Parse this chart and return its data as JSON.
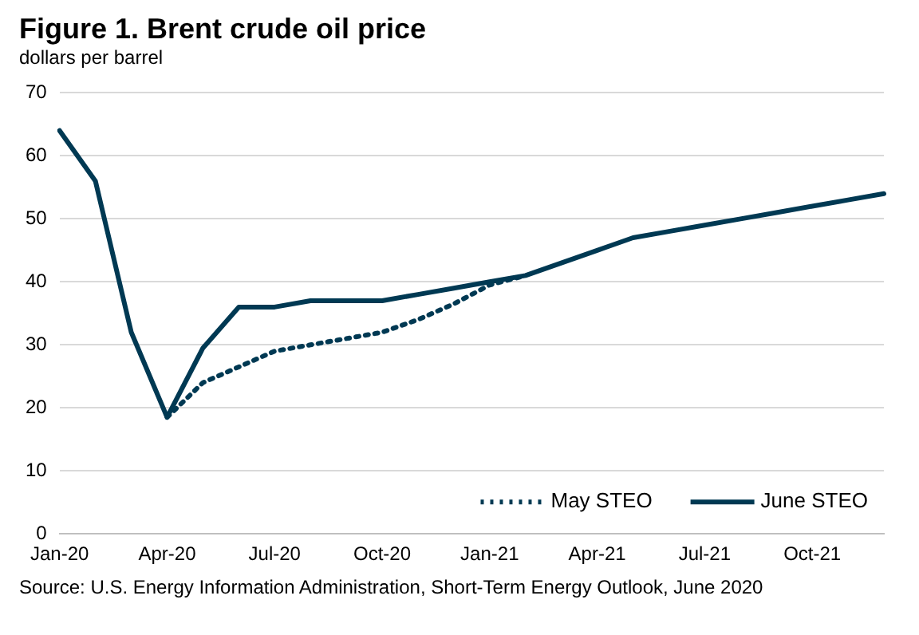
{
  "chart_data": {
    "type": "line",
    "title": "Figure 1. Brent crude oil price",
    "ylabel": "dollars per barrel",
    "categories": [
      "Jan-20",
      null,
      null,
      "Apr-20",
      null,
      null,
      "Jul-20",
      null,
      null,
      "Oct-20",
      null,
      null,
      "Jan-21",
      null,
      null,
      "Apr-21",
      null,
      null,
      "Jul-21",
      null,
      null,
      "Oct-21",
      null,
      null
    ],
    "series": [
      {
        "name": "May STEO",
        "color": "#003953",
        "line_style": "dotted",
        "values": [
          null,
          null,
          null,
          18.5,
          24,
          26.5,
          29,
          30,
          31,
          32,
          34,
          36.5,
          39.5,
          41,
          null,
          null,
          null,
          null,
          null,
          null,
          null,
          null,
          null,
          null
        ]
      },
      {
        "name": "June STEO",
        "color": "#003953",
        "line_style": "solid",
        "values": [
          64,
          56,
          32,
          18.5,
          29.5,
          36,
          36,
          37,
          37,
          37,
          38,
          39,
          40,
          41,
          43,
          45,
          47,
          48,
          49,
          50,
          51,
          52,
          53,
          54
        ]
      }
    ],
    "ylim": [
      0,
      70
    ],
    "yticks": [
      0,
      10,
      20,
      30,
      40,
      50,
      60,
      70
    ],
    "grid": "y",
    "legend": "bottom right",
    "marker": "none",
    "annotations": [
      "Source: U.S. Energy Information Administration, Short-Term Energy Outlook, June 2020"
    ]
  }
}
